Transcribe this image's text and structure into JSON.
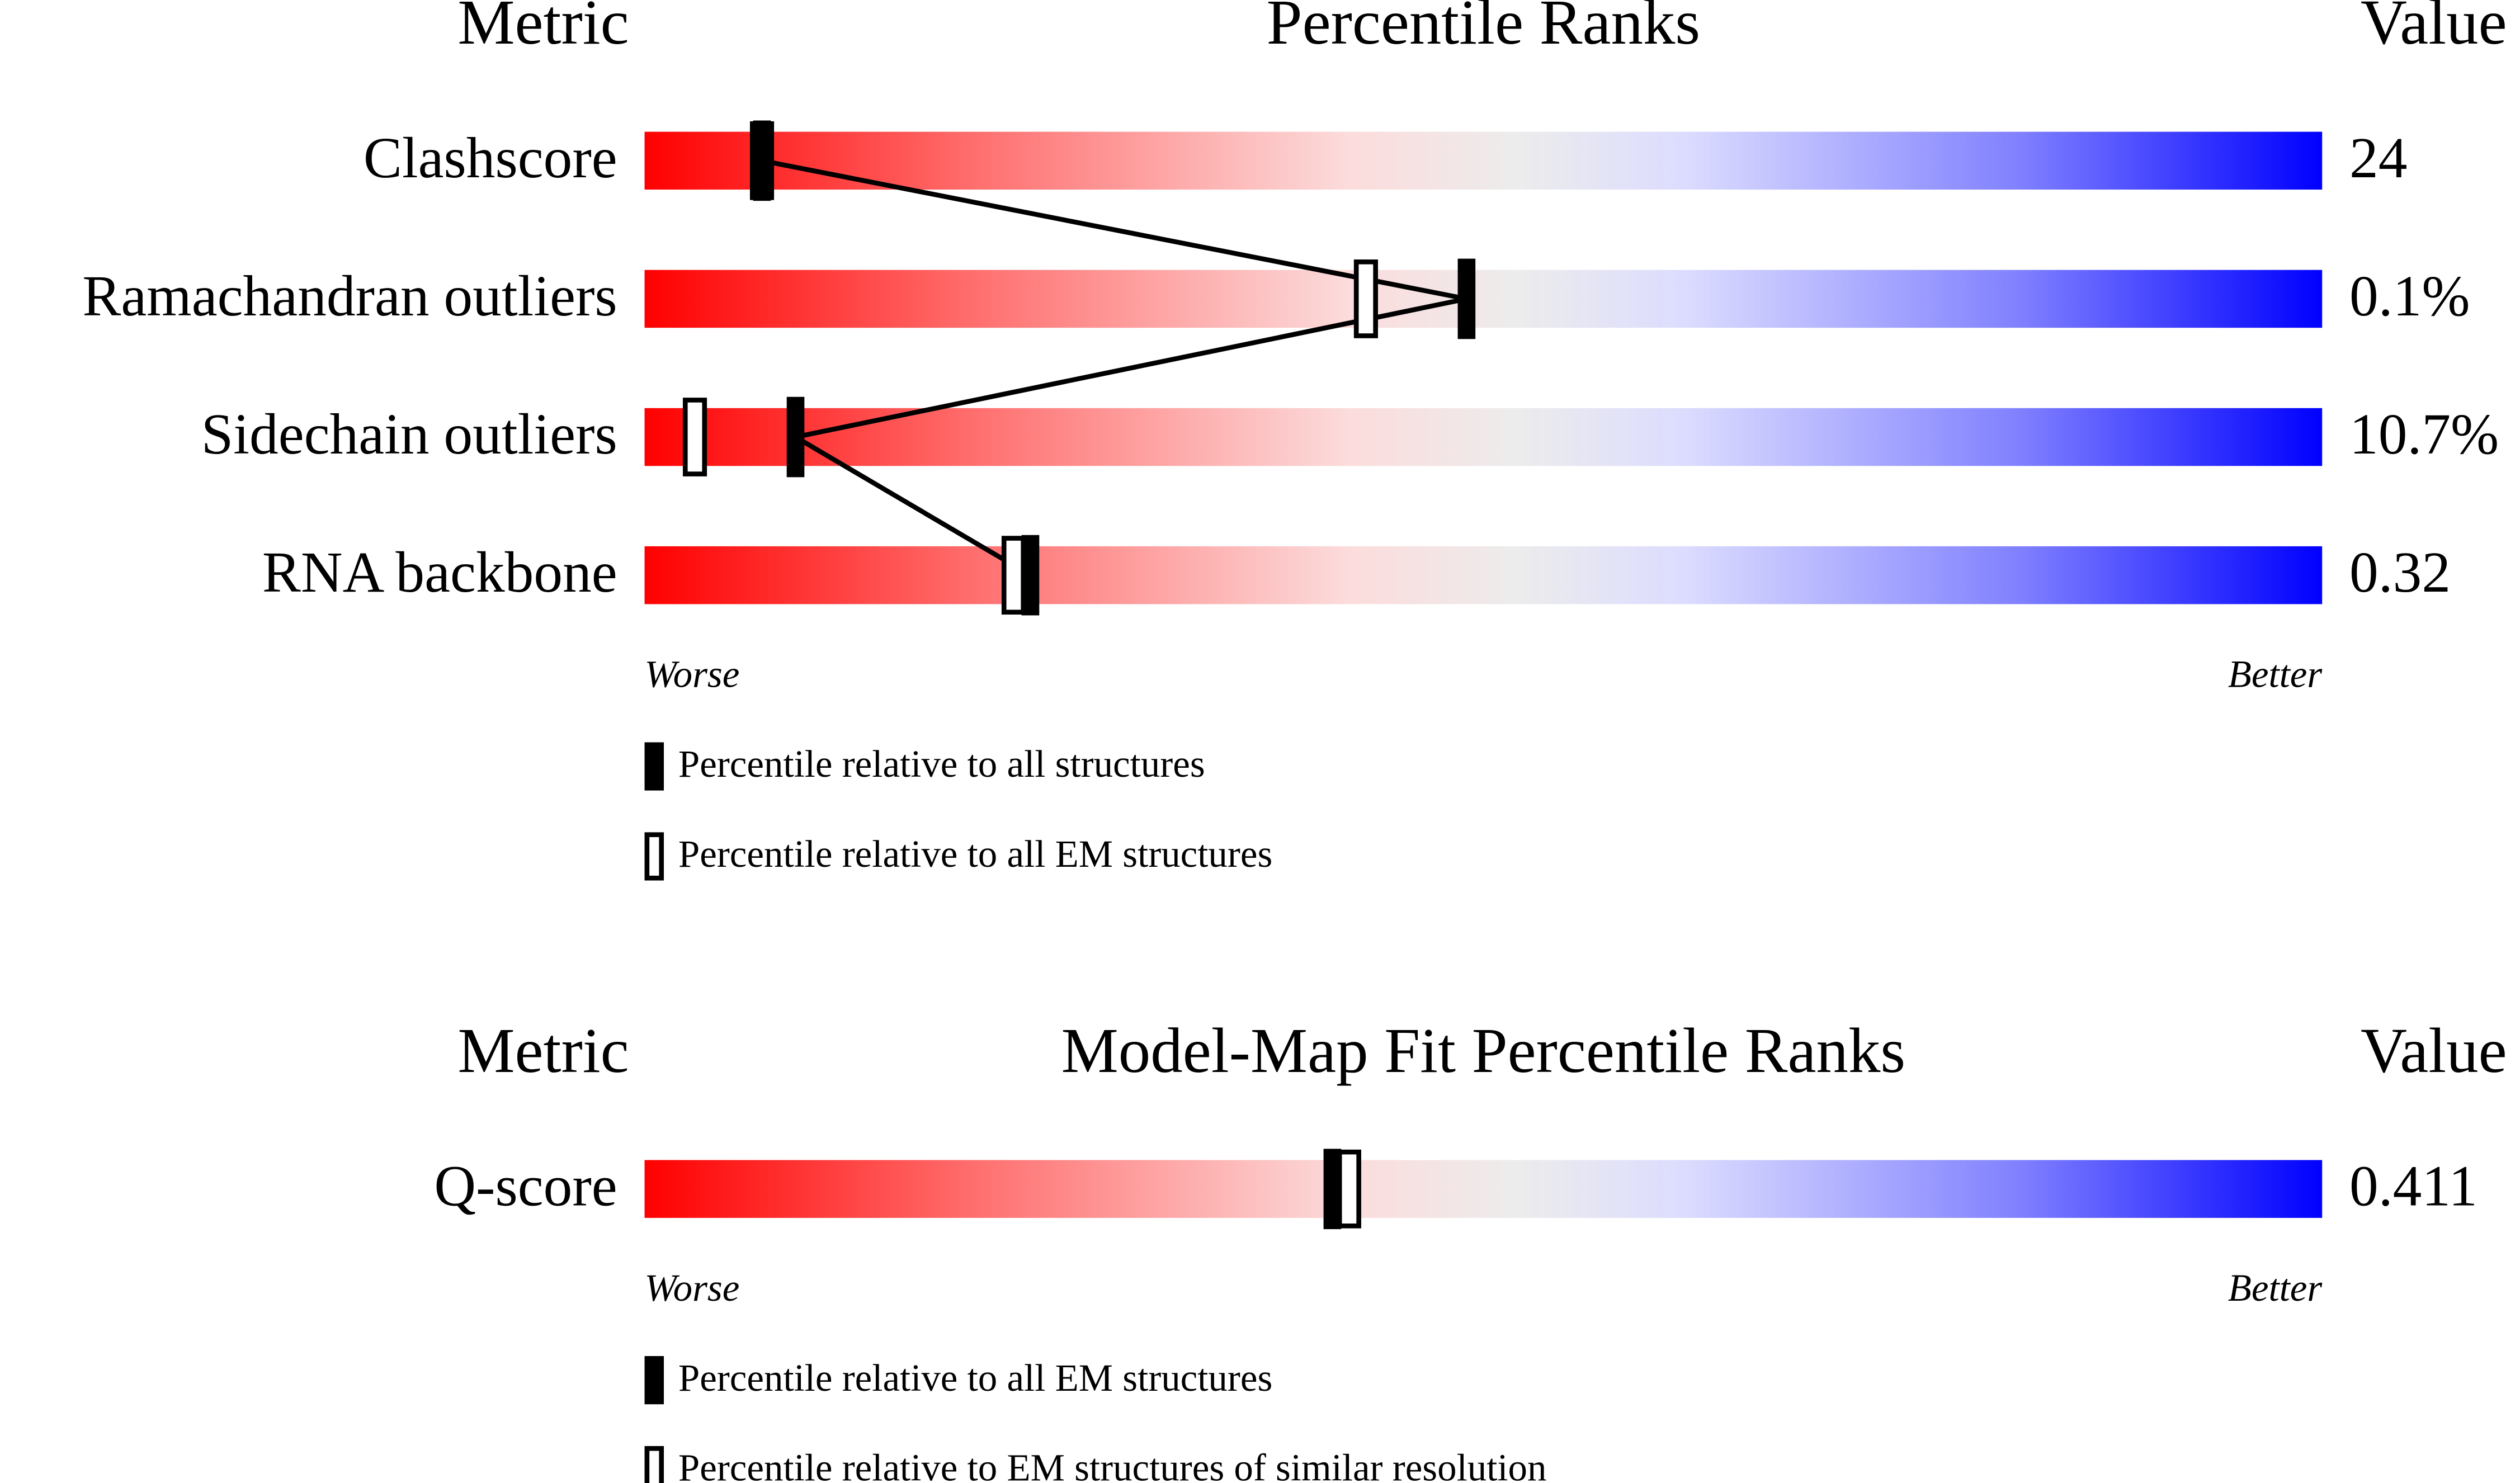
{
  "chart_data": [
    {
      "type": "percentile-slider",
      "metric_header": "Metric",
      "title": "Percentile Ranks",
      "value_header": "Value",
      "metrics": [
        "Clashscore",
        "Ramachandran outliers",
        "Sidechain outliers",
        "RNA backbone"
      ],
      "metric_values": [
        "24",
        "0.1%",
        "10.7%",
        "0.32"
      ],
      "series": [
        {
          "name": "Percentile relative to all structures",
          "style": "filled",
          "color": "#000000",
          "values": [
            7,
            49,
            9,
            23
          ]
        },
        {
          "name": "Percentile relative to all EM structures",
          "style": "open",
          "color": "#000000",
          "values": [
            7,
            43,
            3,
            22
          ]
        }
      ],
      "connect": true,
      "xlim": [
        0,
        100
      ],
      "worse_label": "Worse",
      "better_label": "Better"
    },
    {
      "type": "percentile-slider",
      "metric_header": "Metric",
      "title": "Model-Map Fit Percentile Ranks",
      "value_header": "Value",
      "metrics": [
        "Q-score"
      ],
      "metric_values": [
        "0.411"
      ],
      "series": [
        {
          "name": "Percentile relative to all EM structures",
          "style": "filled",
          "color": "#000000",
          "values": [
            41
          ]
        },
        {
          "name": "Percentile relative to EM structures of similar resolution",
          "style": "open",
          "color": "#000000",
          "values": [
            42
          ]
        }
      ],
      "connect": false,
      "xlim": [
        0,
        100
      ],
      "worse_label": "Worse",
      "better_label": "Better"
    }
  ]
}
